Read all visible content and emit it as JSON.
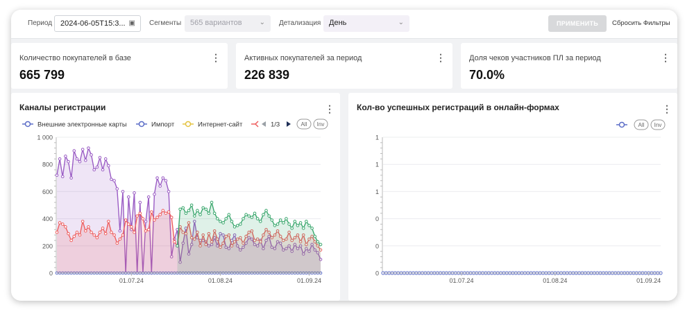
{
  "filters": {
    "period_label": "Период",
    "period_value": "2024-06-05T15:3...",
    "segments_label": "Сегменты",
    "segments_value": "565 вариантов",
    "detail_label": "Детализация",
    "detail_value": "День",
    "apply_label": "ПРИМЕНИТЬ",
    "reset_label": "Сбросить Фильтры"
  },
  "kpis": [
    {
      "title": "Количество покупателей в базе",
      "value": "665 799"
    },
    {
      "title": "Активных покупателей за период",
      "value": "226 839"
    },
    {
      "title": "Доля чеков участников ПЛ за период",
      "value": "70.0%"
    }
  ],
  "panels": [
    {
      "title": "Каналы регистрации",
      "legend": [
        "Внешние электронные карты",
        "Импорт",
        "Интернет-сайт"
      ],
      "pager": "1/3",
      "all_label": "All",
      "inv_label": "Inv"
    },
    {
      "title": "Кол-во успешных регистраций в онлайн-формах",
      "all_label": "All",
      "inv_label": "Inv"
    }
  ],
  "colors": {
    "purple": "#9a5cc4",
    "blue": "#5b6cc7",
    "yellow": "#e4c23f",
    "red": "#ee5e5e",
    "green": "#3aa76d"
  },
  "chart_data": [
    {
      "type": "area",
      "title": "Каналы регистрации",
      "x": [
        "2024-06-05",
        "2024-06-06",
        "2024-06-07",
        "2024-06-08",
        "2024-06-09",
        "2024-06-10",
        "2024-06-11",
        "2024-06-12",
        "2024-06-13",
        "2024-06-14",
        "2024-06-15",
        "2024-06-16",
        "2024-06-17",
        "2024-06-18",
        "2024-06-19",
        "2024-06-20",
        "2024-06-21",
        "2024-06-22",
        "2024-06-23",
        "2024-06-24",
        "2024-06-25",
        "2024-06-26",
        "2024-06-27",
        "2024-06-28",
        "2024-06-29",
        "2024-06-30",
        "2024-07-01",
        "2024-07-02",
        "2024-07-03",
        "2024-07-04",
        "2024-07-05",
        "2024-07-06",
        "2024-07-07",
        "2024-07-08",
        "2024-07-09",
        "2024-07-10",
        "2024-07-11",
        "2024-07-12",
        "2024-07-13",
        "2024-07-14",
        "2024-07-15",
        "2024-07-16",
        "2024-07-17",
        "2024-07-18",
        "2024-07-19",
        "2024-07-20",
        "2024-07-21",
        "2024-07-22",
        "2024-07-23",
        "2024-07-24",
        "2024-07-25",
        "2024-07-26",
        "2024-07-27",
        "2024-07-28",
        "2024-07-29",
        "2024-07-30",
        "2024-07-31",
        "2024-08-01",
        "2024-08-02",
        "2024-08-03",
        "2024-08-04",
        "2024-08-05",
        "2024-08-06",
        "2024-08-07",
        "2024-08-08",
        "2024-08-09",
        "2024-08-10",
        "2024-08-11",
        "2024-08-12",
        "2024-08-13",
        "2024-08-14",
        "2024-08-15",
        "2024-08-16",
        "2024-08-17",
        "2024-08-18",
        "2024-08-19",
        "2024-08-20",
        "2024-08-21",
        "2024-08-22",
        "2024-08-23",
        "2024-08-24",
        "2024-08-25",
        "2024-08-26",
        "2024-08-27",
        "2024-08-28",
        "2024-08-29",
        "2024-08-30",
        "2024-08-31",
        "2024-09-01",
        "2024-09-02",
        "2024-09-03",
        "2024-09-04",
        "2024-09-05"
      ],
      "x_ticks": [
        "01.07.24",
        "01.08.24",
        "01.09.24"
      ],
      "y_ticks": [
        "0",
        "200",
        "400",
        "600",
        "800",
        "1 000"
      ],
      "ylim": [
        0,
        1000
      ],
      "series": [
        {
          "name": "Внешние электронные карты",
          "color": "#9a5cc4",
          "values": [
            720,
            840,
            710,
            860,
            820,
            700,
            900,
            840,
            820,
            910,
            830,
            920,
            870,
            760,
            780,
            850,
            760,
            840,
            790,
            690,
            680,
            620,
            310,
            600,
            0,
            560,
            320,
            590,
            0,
            520,
            0,
            380,
            560,
            0,
            580,
            700,
            640,
            700,
            680,
            600,
            120,
            250,
            320,
            80,
            220,
            330,
            140,
            210,
            380,
            260,
            240,
            240,
            230,
            200,
            210,
            260,
            200,
            290,
            280,
            190,
            180,
            240,
            280,
            200,
            170,
            190,
            220,
            260,
            250,
            210,
            200,
            240,
            180,
            240,
            270,
            190,
            180,
            230,
            220,
            170,
            180,
            200,
            160,
            210,
            180,
            200,
            140,
            180,
            160,
            210,
            170,
            150,
            100
          ]
        },
        {
          "name": "Импорт",
          "color": "#5b6cc7",
          "values": [
            0,
            0,
            0,
            0,
            0,
            0,
            0,
            0,
            0,
            0,
            0,
            0,
            0,
            0,
            0,
            0,
            0,
            0,
            0,
            0,
            0,
            0,
            0,
            0,
            0,
            0,
            0,
            0,
            0,
            0,
            0,
            0,
            0,
            0,
            0,
            0,
            0,
            0,
            0,
            0,
            0,
            0,
            0,
            0,
            0,
            0,
            0,
            0,
            0,
            0,
            0,
            0,
            0,
            0,
            0,
            0,
            0,
            0,
            0,
            0,
            0,
            0,
            0,
            0,
            0,
            0,
            0,
            0,
            0,
            0,
            0,
            0,
            0,
            0,
            0,
            0,
            0,
            0,
            0,
            0,
            0,
            0,
            0,
            0,
            0,
            0,
            0,
            0,
            0,
            0,
            0,
            0,
            0
          ]
        },
        {
          "name": "Интернет-сайт",
          "color": "#ee5e5e",
          "values": [
            300,
            370,
            360,
            340,
            290,
            240,
            270,
            300,
            280,
            380,
            310,
            340,
            300,
            280,
            260,
            300,
            330,
            290,
            380,
            300,
            280,
            220,
            250,
            280,
            390,
            360,
            340,
            300,
            420,
            440,
            400,
            310,
            320,
            450,
            390,
            410,
            430,
            460,
            440,
            450,
            410,
            230,
            200,
            340,
            300,
            290,
            370,
            260,
            250,
            300,
            200,
            280,
            210,
            290,
            230,
            310,
            250,
            190,
            220,
            270,
            280,
            200,
            230,
            250,
            260,
            220,
            270,
            300,
            310,
            240,
            250,
            230,
            280,
            320,
            300,
            260,
            280,
            310,
            270,
            240,
            250,
            300,
            240,
            260,
            280,
            230,
            280,
            210,
            250,
            270,
            230,
            200,
            170
          ]
        },
        {
          "color": "#3aa76d",
          "values": [
            null,
            null,
            null,
            null,
            null,
            null,
            null,
            null,
            null,
            null,
            null,
            null,
            null,
            null,
            null,
            null,
            null,
            null,
            null,
            null,
            null,
            null,
            null,
            null,
            null,
            null,
            null,
            null,
            null,
            null,
            null,
            null,
            null,
            null,
            null,
            null,
            null,
            null,
            null,
            null,
            null,
            null,
            200,
            470,
            480,
            440,
            460,
            500,
            420,
            460,
            430,
            480,
            470,
            440,
            520,
            440,
            400,
            380,
            370,
            400,
            430,
            380,
            340,
            350,
            360,
            400,
            430,
            420,
            410,
            440,
            400,
            380,
            430,
            460,
            420,
            390,
            350,
            360,
            390,
            370,
            400,
            360,
            330,
            380,
            350,
            370,
            330,
            380,
            350,
            330,
            270,
            230,
            210
          ]
        }
      ]
    },
    {
      "type": "line",
      "title": "Кол-во успешных регистраций в онлайн-формах",
      "x_ticks": [
        "01.07.24",
        "01.08.24",
        "01.09.24"
      ],
      "y_ticks": [
        "0",
        "0",
        "0",
        "1",
        "1",
        "1"
      ],
      "series": [
        {
          "color": "#5b6cc7",
          "values": [
            0,
            0,
            0,
            0,
            0,
            0,
            0,
            0,
            0,
            0,
            0,
            0,
            0,
            0,
            0,
            0,
            0,
            0,
            0,
            0,
            0,
            0,
            0,
            0,
            0,
            0,
            0,
            0,
            0,
            0,
            0,
            0,
            0,
            0,
            0,
            0,
            0,
            0,
            0,
            0,
            0,
            0,
            0,
            0,
            0,
            0,
            0,
            0,
            0,
            0,
            0,
            0,
            0,
            0,
            0,
            0,
            0,
            0,
            0,
            0,
            0,
            0,
            0,
            0,
            0,
            0,
            0,
            0,
            0,
            0,
            0,
            0,
            0,
            0,
            0,
            0,
            0,
            0,
            0,
            0,
            0,
            0,
            0,
            0,
            0,
            0,
            0,
            0,
            0,
            0,
            0,
            0,
            0
          ]
        }
      ]
    }
  ]
}
